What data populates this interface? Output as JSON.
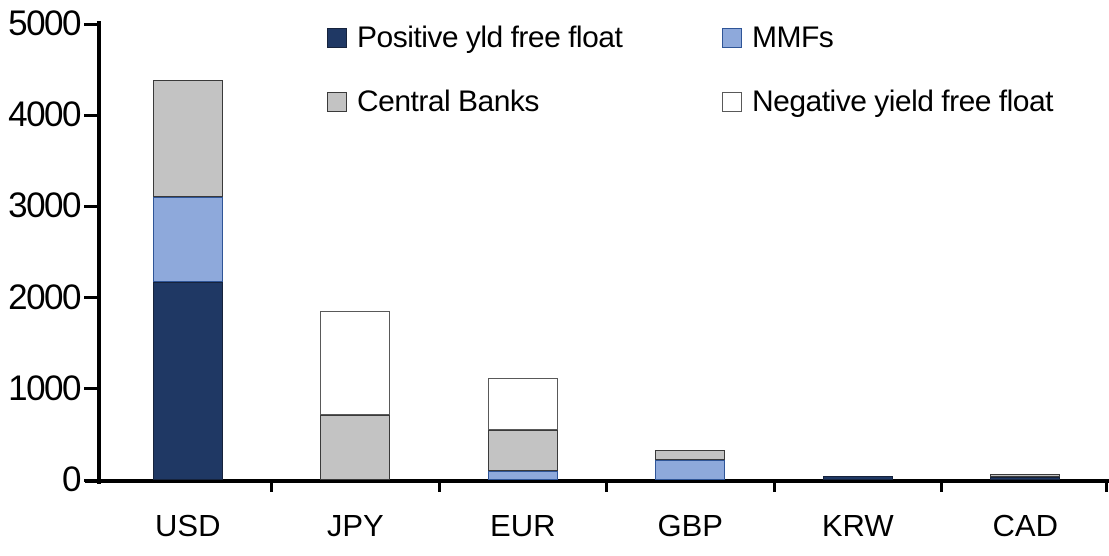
{
  "chart_data": {
    "type": "bar",
    "stacked": true,
    "title": "",
    "xlabel": "",
    "ylabel": "",
    "categories": [
      "USD",
      "JPY",
      "EUR",
      "GBP",
      "KRW",
      "CAD"
    ],
    "series": [
      {
        "name": "Positive yld free float",
        "color": "#1f3864",
        "border_color": "#16233c",
        "values": [
          2170,
          0,
          0,
          0,
          45,
          30
        ]
      },
      {
        "name": "MMFs",
        "color": "#8ea9db",
        "border_color": "#2f5597",
        "values": [
          935,
          0,
          100,
          220,
          0,
          0
        ]
      },
      {
        "name": "Central Banks",
        "color": "#c3c3c3",
        "border_color": "#3a3a3a",
        "values": [
          1285,
          710,
          445,
          110,
          0,
          40
        ]
      },
      {
        "name": "Negative yield free float",
        "color": "#ffffff",
        "border_color": "#595959",
        "values": [
          0,
          1140,
          570,
          0,
          0,
          0
        ]
      }
    ],
    "totals": {
      "USD": 4390,
      "JPY": 1850,
      "EUR": 1115,
      "GBP": 330,
      "KRW": 45,
      "CAD": 70
    },
    "ylim": [
      0,
      5000
    ],
    "yticks": [
      0,
      1000,
      2000,
      3000,
      4000,
      5000
    ],
    "grid": false,
    "legend_position": "top",
    "legend_columns": 2,
    "axis_color": "#000000",
    "text_color": "#000000",
    "background_color": "#ffffff"
  }
}
